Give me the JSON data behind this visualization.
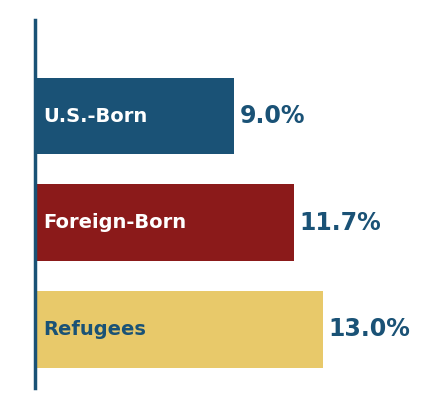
{
  "categories": [
    "U.S.-Born",
    "Foreign-Born",
    "Refugees"
  ],
  "values": [
    9.0,
    11.7,
    13.0
  ],
  "labels": [
    "9.0%",
    "11.7%",
    "13.0%"
  ],
  "bar_colors": [
    "#1a5276",
    "#8b1a1a",
    "#e8c96a"
  ],
  "label_colors_inside": [
    "#ffffff",
    "#ffffff",
    "#1a5276"
  ],
  "value_color": "#1a5276",
  "background_color": "#ffffff",
  "bar_label_fontsize": 14,
  "value_fontsize": 17,
  "spine_color": "#1a5276",
  "xlim": [
    0,
    18
  ]
}
